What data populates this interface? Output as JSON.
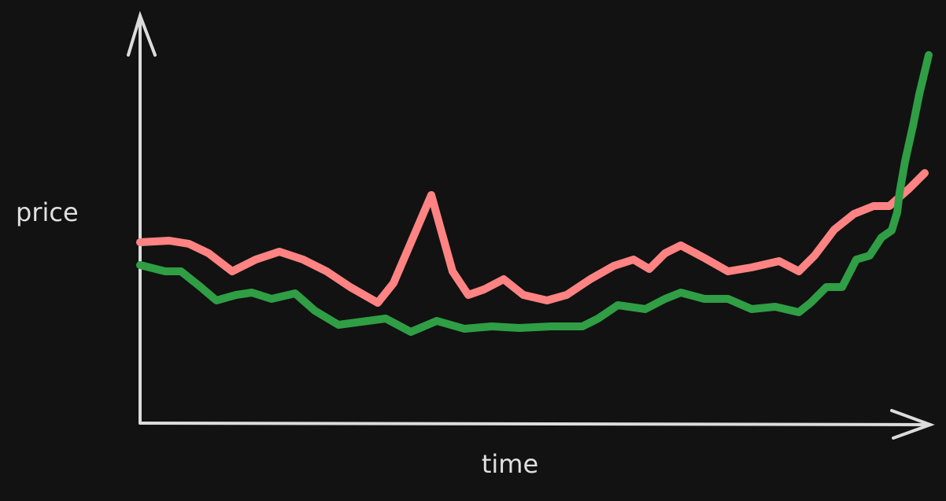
{
  "chart_data": {
    "type": "line",
    "xlabel": "time",
    "ylabel": "price",
    "xlim": [
      0,
      1002
    ],
    "ylim": [
      0,
      518
    ],
    "series": [
      {
        "color": "#ff8383",
        "x": [
          0,
          37,
          62,
          87,
          117,
          147,
          177,
          207,
          237,
          267,
          302,
          322,
          370,
          397,
          417,
          437,
          462,
          487,
          517,
          542,
          572,
          602,
          627,
          647,
          667,
          687,
          717,
          747,
          777,
          812,
          837,
          857,
          882,
          907,
          932,
          952,
          977,
          997
        ],
        "values": [
          230,
          232,
          228,
          216,
          193,
          208,
          218,
          208,
          193,
          173,
          153,
          178,
          290,
          193,
          163,
          170,
          183,
          163,
          156,
          163,
          183,
          200,
          208,
          196,
          216,
          226,
          210,
          193,
          198,
          206,
          193,
          213,
          246,
          266,
          276,
          276,
          298,
          318
        ]
      },
      {
        "color": "#2f9e44",
        "x": [
          0,
          32,
          52,
          77,
          97,
          122,
          142,
          167,
          197,
          222,
          252,
          282,
          312,
          344,
          377,
          412,
          447,
          482,
          522,
          562,
          582,
          607,
          642,
          667,
          687,
          717,
          747,
          777,
          807,
          837,
          852,
          872,
          892,
          910,
          927,
          942,
          955,
          962,
          965,
          972,
          982,
          990,
          1002
        ],
        "values": [
          201,
          193,
          193,
          173,
          156,
          163,
          166,
          158,
          165,
          143,
          125,
          129,
          133,
          116,
          130,
          120,
          123,
          121,
          123,
          123,
          133,
          150,
          145,
          158,
          166,
          158,
          158,
          145,
          148,
          141,
          153,
          173,
          173,
          208,
          213,
          236,
          245,
          268,
          293,
          333,
          378,
          418,
          468
        ]
      }
    ]
  }
}
